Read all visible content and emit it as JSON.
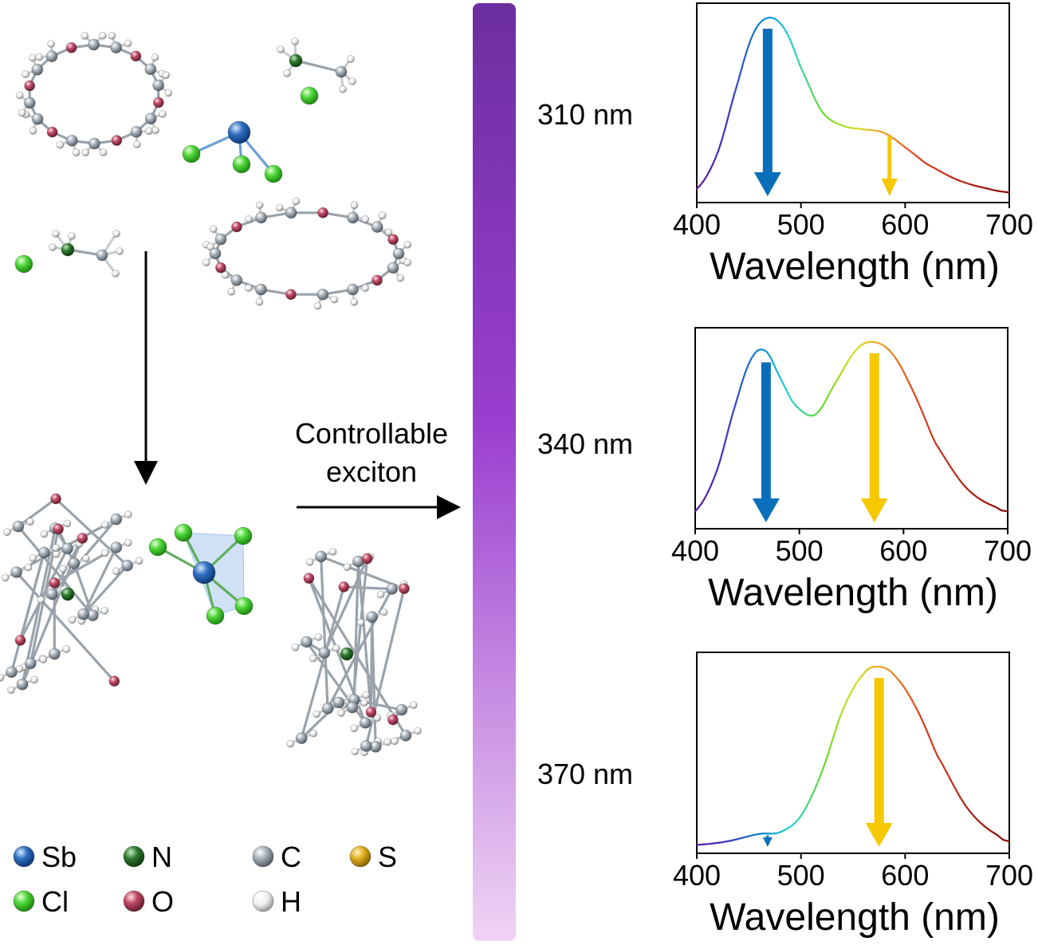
{
  "arrow_label": [
    "Controllable",
    "exciton"
  ],
  "excitation": {
    "labels": [
      "310 nm",
      "340 nm",
      "370 nm"
    ],
    "bar_top_color": "#6c2ea0",
    "bar_mid_color": "#9a3fd0",
    "bar_bottom_color": "#f0d4f4"
  },
  "legend": {
    "items": [
      {
        "symbol": "Sb",
        "color": "#2f6fc0"
      },
      {
        "symbol": "N",
        "color": "#2e7a2e"
      },
      {
        "symbol": "C",
        "color": "#8c97a2"
      },
      {
        "symbol": "S",
        "color": "#e0b020"
      },
      {
        "symbol": "Cl",
        "color": "#4fd63a"
      },
      {
        "symbol": "O",
        "color": "#b0405a"
      },
      {
        "symbol": "H",
        "color": "#e6e6e6"
      }
    ]
  },
  "arrow_colors": {
    "blue": "#0a6fba",
    "yellow": "#f6c800"
  },
  "chart_data": [
    {
      "type": "line",
      "excitation": "310 nm",
      "xlabel": "Wavelength (nm)",
      "xlim": [
        400,
        700
      ],
      "xticks": [
        400,
        500,
        600,
        700
      ],
      "series": [
        {
          "x": [
            400,
            420,
            440,
            455,
            470,
            485,
            500,
            520,
            540,
            560,
            580,
            600,
            620,
            650,
            680,
            700
          ],
          "y": [
            0.05,
            0.25,
            0.65,
            0.92,
            1.0,
            0.93,
            0.72,
            0.48,
            0.4,
            0.38,
            0.36,
            0.28,
            0.19,
            0.1,
            0.05,
            0.03
          ]
        }
      ],
      "emission_arrows": [
        {
          "wavelength": 468,
          "color": "blue",
          "relative": 1.0
        },
        {
          "wavelength": 585,
          "color": "yellow",
          "relative": 0.36
        }
      ]
    },
    {
      "type": "line",
      "excitation": "340 nm",
      "xlabel": "Wavelength (nm)",
      "xlim": [
        400,
        700
      ],
      "xticks": [
        400,
        500,
        600,
        700
      ],
      "series": [
        {
          "x": [
            400,
            420,
            440,
            455,
            468,
            480,
            495,
            515,
            535,
            555,
            572,
            590,
            610,
            630,
            660,
            690,
            700
          ],
          "y": [
            0.07,
            0.28,
            0.68,
            0.92,
            0.95,
            0.82,
            0.66,
            0.6,
            0.78,
            0.96,
            1.0,
            0.93,
            0.72,
            0.45,
            0.2,
            0.09,
            0.07
          ]
        }
      ],
      "emission_arrows": [
        {
          "wavelength": 468,
          "color": "blue",
          "relative": 0.95
        },
        {
          "wavelength": 572,
          "color": "yellow",
          "relative": 1.0
        }
      ]
    },
    {
      "type": "line",
      "excitation": "370 nm",
      "xlabel": "Wavelength (nm)",
      "xlim": [
        400,
        700
      ],
      "xticks": [
        400,
        500,
        600,
        700
      ],
      "series": [
        {
          "x": [
            400,
            430,
            460,
            480,
            500,
            520,
            540,
            560,
            575,
            590,
            610,
            630,
            660,
            690,
            700
          ],
          "y": [
            0.02,
            0.04,
            0.08,
            0.09,
            0.18,
            0.42,
            0.76,
            0.96,
            1.0,
            0.95,
            0.78,
            0.52,
            0.22,
            0.07,
            0.04
          ]
        }
      ],
      "emission_arrows": [
        {
          "wavelength": 468,
          "color": "blue",
          "relative": 0.09
        },
        {
          "wavelength": 575,
          "color": "yellow",
          "relative": 1.0
        }
      ]
    }
  ]
}
